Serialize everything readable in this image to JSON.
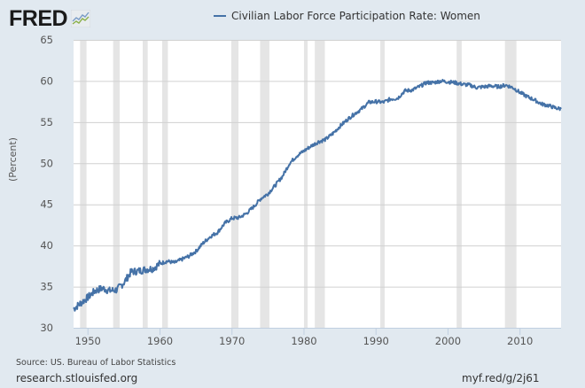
{
  "header": {
    "logo_text": "FRED",
    "logo_icon": "chart-line-icon",
    "legend_label": "Civilian Labor Force Participation Rate: Women",
    "series_color": "#4572a7"
  },
  "axis": {
    "ylabel": "(Percent)",
    "yticks": [
      "65",
      "60",
      "55",
      "50",
      "45",
      "40",
      "35",
      "30"
    ],
    "xticks": [
      "1950",
      "1960",
      "1970",
      "1980",
      "1990",
      "2000",
      "2010"
    ]
  },
  "footer": {
    "source": "Source: US. Bureau of Labor Statistics",
    "site": "research.stlouisfed.org",
    "short_url": "myf.red/g/2j61"
  },
  "colors": {
    "background": "#e1e9f0",
    "plot_background": "#ffffff",
    "recession_band": "#e5e5e5",
    "gridline": "#d0d0d0",
    "line": "#4572a7"
  },
  "chart_data": {
    "type": "line",
    "title": "Civilian Labor Force Participation Rate: Women",
    "xlabel": "",
    "ylabel": "(Percent)",
    "ylim": [
      30,
      65
    ],
    "xlim": [
      1948,
      2015.7
    ],
    "grid": true,
    "legend_position": "top",
    "recessions": [
      [
        1948.9,
        1949.8
      ],
      [
        1953.5,
        1954.4
      ],
      [
        1957.6,
        1958.3
      ],
      [
        1960.3,
        1961.1
      ],
      [
        1969.9,
        1970.9
      ],
      [
        1973.9,
        1975.2
      ],
      [
        1980.0,
        1980.5
      ],
      [
        1981.5,
        1982.9
      ],
      [
        1990.6,
        1991.2
      ],
      [
        2001.2,
        2001.9
      ],
      [
        2007.9,
        2009.5
      ]
    ],
    "series": [
      {
        "name": "Civilian Labor Force Participation Rate: Women",
        "x": [
          1948,
          1949,
          1950,
          1951,
          1952,
          1953,
          1954,
          1955,
          1956,
          1957,
          1958,
          1959,
          1960,
          1961,
          1962,
          1963,
          1964,
          1965,
          1966,
          1967,
          1968,
          1969,
          1970,
          1971,
          1972,
          1973,
          1974,
          1975,
          1976,
          1977,
          1978,
          1979,
          1980,
          1981,
          1982,
          1983,
          1984,
          1985,
          1986,
          1987,
          1988,
          1989,
          1990,
          1991,
          1992,
          1993,
          1994,
          1995,
          1996,
          1997,
          1998,
          1999,
          2000,
          2001,
          2002,
          2003,
          2004,
          2005,
          2006,
          2007,
          2008,
          2009,
          2010,
          2011,
          2012,
          2013,
          2014,
          2015,
          2015.7
        ],
        "values": [
          32.3,
          33.0,
          33.7,
          34.5,
          34.8,
          34.5,
          34.6,
          35.5,
          36.8,
          36.9,
          37.1,
          37.2,
          37.8,
          38.1,
          37.9,
          38.3,
          38.7,
          39.3,
          40.3,
          41.1,
          41.6,
          42.7,
          43.3,
          43.4,
          43.9,
          44.7,
          45.7,
          46.3,
          47.3,
          48.4,
          50.0,
          50.9,
          51.5,
          52.1,
          52.6,
          52.9,
          53.6,
          54.5,
          55.3,
          56.0,
          56.6,
          57.4,
          57.5,
          57.4,
          57.8,
          57.9,
          58.8,
          58.9,
          59.3,
          59.8,
          59.8,
          60.0,
          59.9,
          59.8,
          59.6,
          59.5,
          59.2,
          59.3,
          59.4,
          59.3,
          59.5,
          59.2,
          58.6,
          58.1,
          57.7,
          57.2,
          57.0,
          56.7,
          56.6
        ]
      }
    ]
  }
}
